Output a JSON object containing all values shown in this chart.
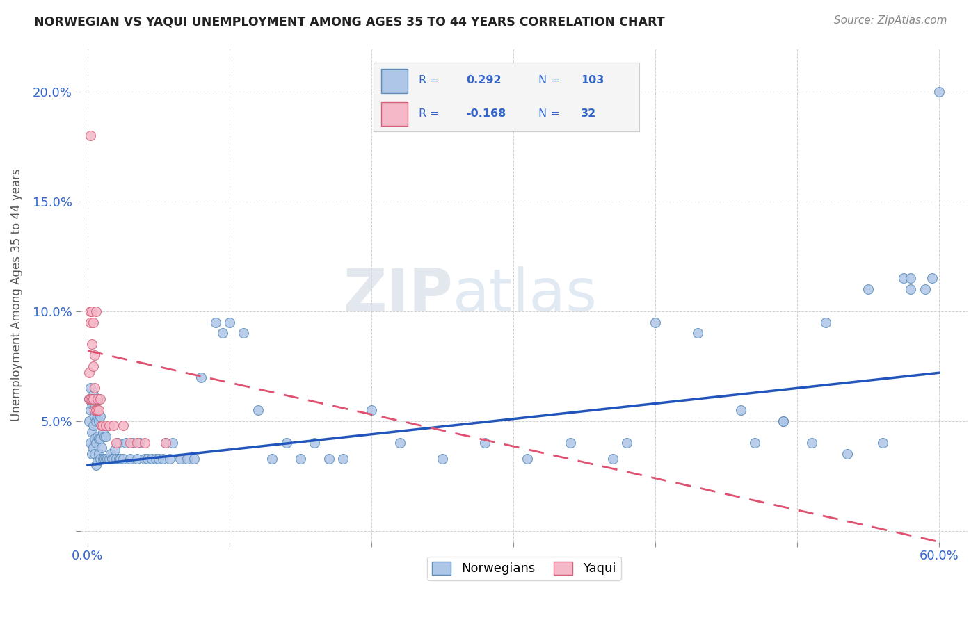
{
  "title": "NORWEGIAN VS YAQUI UNEMPLOYMENT AMONG AGES 35 TO 44 YEARS CORRELATION CHART",
  "source": "Source: ZipAtlas.com",
  "ylabel": "Unemployment Among Ages 35 to 44 years",
  "xlim": [
    -0.005,
    0.62
  ],
  "ylim": [
    -0.005,
    0.22
  ],
  "xticks": [
    0.0,
    0.1,
    0.2,
    0.3,
    0.4,
    0.5,
    0.6
  ],
  "xticklabels": [
    "0.0%",
    "",
    "",
    "",
    "",
    "",
    "60.0%"
  ],
  "yticks": [
    0.0,
    0.05,
    0.1,
    0.15,
    0.2
  ],
  "yticklabels": [
    "",
    "5.0%",
    "10.0%",
    "15.0%",
    "20.0%"
  ],
  "norwegian_R": 0.292,
  "norwegian_N": 103,
  "yaqui_R": -0.168,
  "yaqui_N": 32,
  "norwegian_color": "#aec6e8",
  "norwegian_edge": "#5b8db8",
  "yaqui_color": "#f5b8c8",
  "yaqui_edge": "#d4607a",
  "trend_norwegian_color": "#2255bb",
  "trend_yaqui_color": "#e05070",
  "trend_yaqui_dash": [
    8,
    5
  ],
  "watermark_zip": "ZIP",
  "watermark_atlas": "atlas",
  "nor_trend_x0": 0.0,
  "nor_trend_y0": 0.03,
  "nor_trend_x1": 0.6,
  "nor_trend_y1": 0.072,
  "yaq_trend_x0": 0.0,
  "yaq_trend_y0": 0.082,
  "yaq_trend_x1": 0.6,
  "yaq_trend_y1": -0.005,
  "norwegian_x": [
    0.001,
    0.001,
    0.002,
    0.002,
    0.002,
    0.003,
    0.003,
    0.003,
    0.004,
    0.004,
    0.004,
    0.005,
    0.005,
    0.005,
    0.005,
    0.006,
    0.006,
    0.006,
    0.006,
    0.007,
    0.007,
    0.007,
    0.007,
    0.008,
    0.008,
    0.008,
    0.008,
    0.009,
    0.009,
    0.009,
    0.01,
    0.01,
    0.011,
    0.011,
    0.012,
    0.012,
    0.013,
    0.013,
    0.014,
    0.015,
    0.016,
    0.017,
    0.018,
    0.019,
    0.02,
    0.021,
    0.022,
    0.023,
    0.025,
    0.027,
    0.03,
    0.032,
    0.035,
    0.037,
    0.04,
    0.042,
    0.045,
    0.048,
    0.05,
    0.053,
    0.055,
    0.058,
    0.06,
    0.065,
    0.07,
    0.075,
    0.08,
    0.09,
    0.095,
    0.1,
    0.11,
    0.12,
    0.13,
    0.14,
    0.15,
    0.16,
    0.17,
    0.18,
    0.2,
    0.22,
    0.25,
    0.28,
    0.31,
    0.34,
    0.37,
    0.4,
    0.43,
    0.46,
    0.49,
    0.52,
    0.55,
    0.575,
    0.58,
    0.595,
    0.6,
    0.58,
    0.59,
    0.56,
    0.535,
    0.51,
    0.49,
    0.47,
    0.38
  ],
  "norwegian_y": [
    0.05,
    0.06,
    0.04,
    0.055,
    0.065,
    0.035,
    0.045,
    0.058,
    0.038,
    0.048,
    0.062,
    0.035,
    0.042,
    0.052,
    0.058,
    0.03,
    0.04,
    0.05,
    0.06,
    0.032,
    0.043,
    0.052,
    0.055,
    0.035,
    0.042,
    0.05,
    0.06,
    0.033,
    0.042,
    0.052,
    0.038,
    0.048,
    0.033,
    0.045,
    0.033,
    0.043,
    0.033,
    0.043,
    0.033,
    0.033,
    0.035,
    0.033,
    0.033,
    0.037,
    0.033,
    0.04,
    0.033,
    0.033,
    0.033,
    0.04,
    0.033,
    0.04,
    0.033,
    0.04,
    0.033,
    0.033,
    0.033,
    0.033,
    0.033,
    0.033,
    0.04,
    0.033,
    0.04,
    0.033,
    0.033,
    0.033,
    0.07,
    0.095,
    0.09,
    0.095,
    0.09,
    0.055,
    0.033,
    0.04,
    0.033,
    0.04,
    0.033,
    0.033,
    0.055,
    0.04,
    0.033,
    0.04,
    0.033,
    0.04,
    0.033,
    0.095,
    0.09,
    0.055,
    0.05,
    0.095,
    0.11,
    0.115,
    0.11,
    0.115,
    0.2,
    0.115,
    0.11,
    0.04,
    0.035,
    0.04,
    0.05,
    0.04,
    0.04
  ],
  "yaqui_x": [
    0.001,
    0.001,
    0.002,
    0.002,
    0.002,
    0.003,
    0.003,
    0.003,
    0.004,
    0.004,
    0.004,
    0.005,
    0.005,
    0.005,
    0.006,
    0.006,
    0.007,
    0.007,
    0.008,
    0.009,
    0.01,
    0.011,
    0.013,
    0.015,
    0.018,
    0.02,
    0.025,
    0.03,
    0.035,
    0.04,
    0.055,
    0.002
  ],
  "yaqui_y": [
    0.06,
    0.072,
    0.06,
    0.095,
    0.1,
    0.06,
    0.085,
    0.1,
    0.06,
    0.075,
    0.095,
    0.055,
    0.065,
    0.08,
    0.055,
    0.1,
    0.055,
    0.06,
    0.055,
    0.06,
    0.048,
    0.048,
    0.048,
    0.048,
    0.048,
    0.04,
    0.048,
    0.04,
    0.04,
    0.04,
    0.04,
    0.18
  ]
}
